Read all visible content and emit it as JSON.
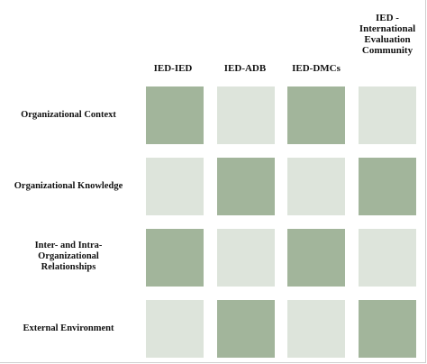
{
  "colors": {
    "strong": "#a2b59b",
    "weak": "#dde4db"
  },
  "columns": [
    {
      "label": "IED-IED"
    },
    {
      "label": "IED-ADB"
    },
    {
      "label": "IED-DMCs"
    },
    {
      "label": "IED -\nInternational\nEvaluation\nCommunity"
    }
  ],
  "rows": [
    {
      "label": "Organizational Context",
      "levels": [
        "strong",
        "weak",
        "strong",
        "weak"
      ]
    },
    {
      "label": "Organizational Knowledge",
      "levels": [
        "weak",
        "strong",
        "weak",
        "strong"
      ]
    },
    {
      "label": "Inter- and Intra-\nOrganizational\nRelationships",
      "levels": [
        "strong",
        "weak",
        "strong",
        "weak"
      ]
    },
    {
      "label": "External Environment",
      "levels": [
        "weak",
        "strong",
        "weak",
        "strong"
      ]
    }
  ]
}
